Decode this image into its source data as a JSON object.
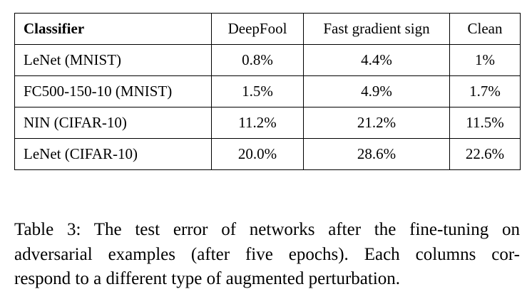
{
  "table": {
    "header": [
      "Classifier",
      "DeepFool",
      "Fast gradient sign",
      "Clean"
    ],
    "rows": [
      [
        "LeNet (MNIST)",
        "0.8%",
        "4.4%",
        "1%"
      ],
      [
        "FC500-150-10 (MNIST)",
        "1.5%",
        "4.9%",
        "1.7%"
      ],
      [
        "NIN (CIFAR-10)",
        "11.2%",
        "21.2%",
        "11.5%"
      ],
      [
        "LeNet (CIFAR-10)",
        "20.0%",
        "28.6%",
        "22.6%"
      ]
    ]
  },
  "caption": {
    "lines": [
      "Table 3: The test error of networks after the fine-tuning on",
      "adversarial examples (after five epochs). Each columns cor-",
      "respond to a different type of augmented perturbation."
    ]
  }
}
